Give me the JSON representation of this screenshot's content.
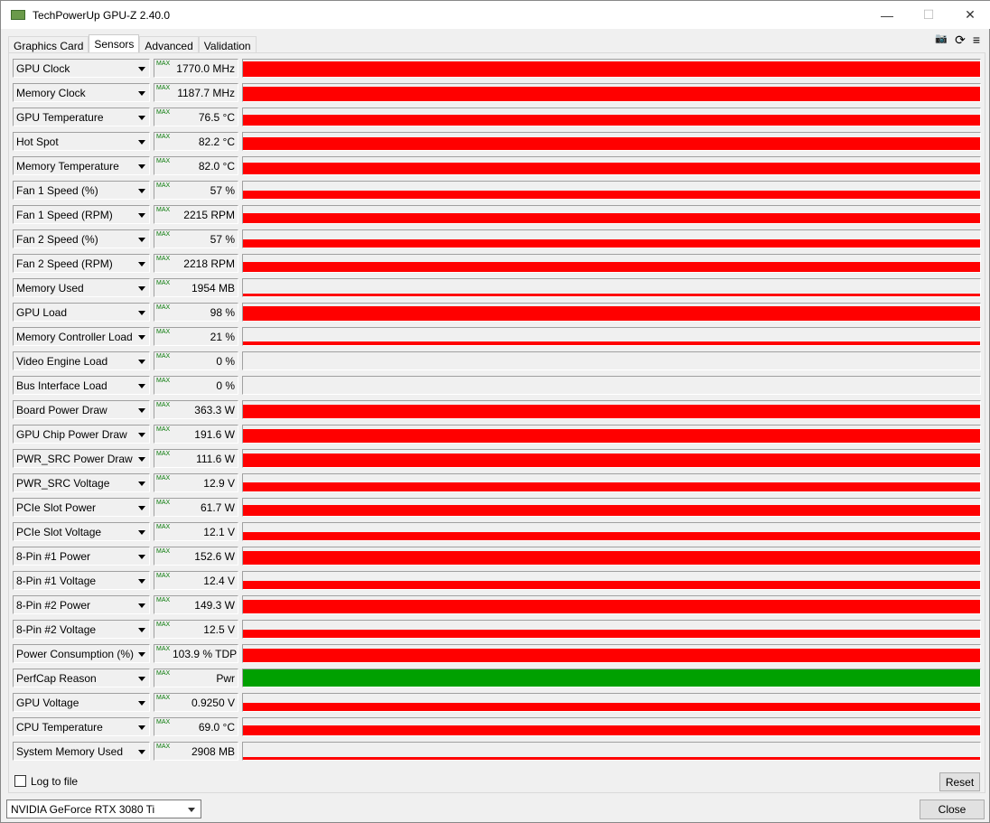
{
  "window": {
    "title": "TechPowerUp GPU-Z 2.40.0",
    "minimize": "—",
    "maximize": "☐",
    "close": "✕"
  },
  "tabs": [
    "Graphics Card",
    "Sensors",
    "Advanced",
    "Validation"
  ],
  "toolbar": {
    "camera": "📷",
    "refresh": "⟳",
    "menu": "≡"
  },
  "max_label": "MAX",
  "colors": {
    "graph": "#ff0000",
    "perfcap": "#00a000"
  },
  "sensors": [
    {
      "name": "GPU Clock",
      "value": "1770.0 MHz",
      "fill": 0.9
    },
    {
      "name": "Memory Clock",
      "value": "1187.7 MHz",
      "fill": 0.85
    },
    {
      "name": "GPU Temperature",
      "value": "76.5 °C",
      "fill": 0.65
    },
    {
      "name": "Hot Spot",
      "value": "82.2 °C",
      "fill": 0.75
    },
    {
      "name": "Memory Temperature",
      "value": "82.0 °C",
      "fill": 0.7
    },
    {
      "name": "Fan 1 Speed (%)",
      "value": "57 %",
      "fill": 0.5
    },
    {
      "name": "Fan 1 Speed (RPM)",
      "value": "2215 RPM",
      "fill": 0.6
    },
    {
      "name": "Fan 2 Speed (%)",
      "value": "57 %",
      "fill": 0.5
    },
    {
      "name": "Fan 2 Speed (RPM)",
      "value": "2218 RPM",
      "fill": 0.6
    },
    {
      "name": "Memory Used",
      "value": "1954 MB",
      "fill": 0.15
    },
    {
      "name": "GPU Load",
      "value": "98 %",
      "fill": 0.85
    },
    {
      "name": "Memory Controller Load",
      "value": "21 %",
      "fill": 0.2
    },
    {
      "name": "Video Engine Load",
      "value": "0 %",
      "fill": 0
    },
    {
      "name": "Bus Interface Load",
      "value": "0 %",
      "fill": 0
    },
    {
      "name": "Board Power Draw",
      "value": "363.3 W",
      "fill": 0.8
    },
    {
      "name": "GPU Chip Power Draw",
      "value": "191.6 W",
      "fill": 0.8
    },
    {
      "name": "PWR_SRC Power Draw",
      "value": "111.6 W",
      "fill": 0.8
    },
    {
      "name": "PWR_SRC Voltage",
      "value": "12.9 V",
      "fill": 0.55
    },
    {
      "name": "PCIe Slot Power",
      "value": "61.7 W",
      "fill": 0.65
    },
    {
      "name": "PCIe Slot Voltage",
      "value": "12.1 V",
      "fill": 0.5
    },
    {
      "name": "8-Pin #1 Power",
      "value": "152.6 W",
      "fill": 0.8
    },
    {
      "name": "8-Pin #1 Voltage",
      "value": "12.4 V",
      "fill": 0.5
    },
    {
      "name": "8-Pin #2 Power",
      "value": "149.3 W",
      "fill": 0.8
    },
    {
      "name": "8-Pin #2 Voltage",
      "value": "12.5 V",
      "fill": 0.5
    },
    {
      "name": "Power Consumption (%)",
      "value": "103.9 % TDP",
      "fill": 0.8
    },
    {
      "name": "PerfCap Reason",
      "value": "Pwr",
      "fill": 1,
      "green": true
    },
    {
      "name": "GPU Voltage",
      "value": "0.9250 V",
      "fill": 0.45
    },
    {
      "name": "CPU Temperature",
      "value": "69.0 °C",
      "fill": 0.6
    },
    {
      "name": "System Memory Used",
      "value": "2908 MB",
      "fill": 0.15
    }
  ],
  "footer": {
    "log_label": "Log to file",
    "reset": "Reset",
    "gpu": "NVIDIA GeForce RTX 3080 Ti",
    "close": "Close"
  }
}
